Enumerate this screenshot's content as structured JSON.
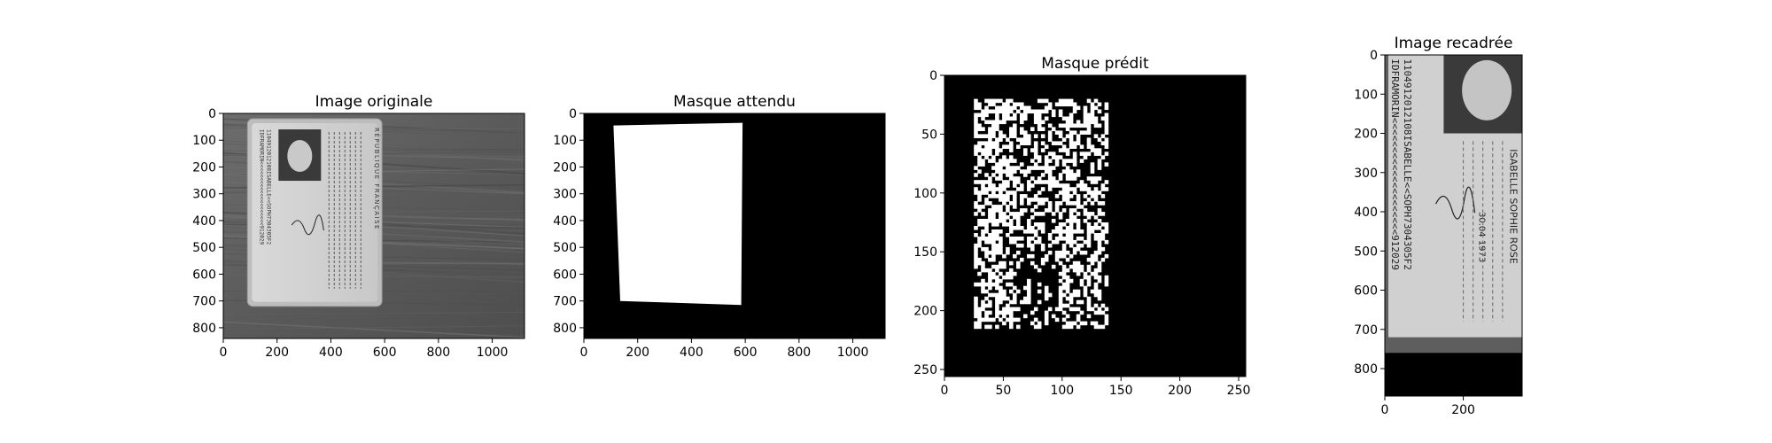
{
  "panels": [
    {
      "title": "Image originale",
      "kind": "photo-card",
      "xlim": [
        0,
        1120
      ],
      "ylim": [
        0,
        840
      ],
      "xticks": [
        "0",
        "200",
        "400",
        "600",
        "800",
        "1000"
      ],
      "yticks": [
        "0",
        "100",
        "200",
        "300",
        "400",
        "500",
        "600",
        "700",
        "800"
      ]
    },
    {
      "title": "Masque attendu",
      "kind": "mask-quad",
      "xlim": [
        0,
        1120
      ],
      "ylim": [
        0,
        840
      ],
      "xticks": [
        "0",
        "200",
        "400",
        "600",
        "800",
        "1000"
      ],
      "yticks": [
        "0",
        "100",
        "200",
        "300",
        "400",
        "500",
        "600",
        "700",
        "800"
      ],
      "quad": [
        [
          110,
          45
        ],
        [
          590,
          35
        ],
        [
          585,
          715
        ],
        [
          135,
          700
        ]
      ]
    },
    {
      "title": "Masque prédit",
      "kind": "mask-noise",
      "xlim": [
        0,
        256
      ],
      "ylim": [
        0,
        256
      ],
      "xticks": [
        "0",
        "50",
        "100",
        "150",
        "200",
        "250"
      ],
      "yticks": [
        "0",
        "50",
        "100",
        "150",
        "200",
        "250"
      ]
    },
    {
      "title": "Image recadrée",
      "kind": "crop",
      "xlim": [
        0,
        350
      ],
      "ylim": [
        0,
        870
      ],
      "xticks": [
        "0",
        "200"
      ],
      "yticks": [
        "0",
        "100",
        "200",
        "300",
        "400",
        "500",
        "600",
        "700",
        "800"
      ]
    }
  ],
  "card_text": {
    "republique": "RÉPUBLIQUE FRANÇAISE",
    "mrz1": "IDFRAMORIN<<<<<<<<<<<<<<<<<<<<912029",
    "mrz2": "1104912012108ISABELLE<<SOPH7304305F2",
    "name": "ISABELLE SOPHIE ROSE",
    "dob": "30.04 1973"
  }
}
